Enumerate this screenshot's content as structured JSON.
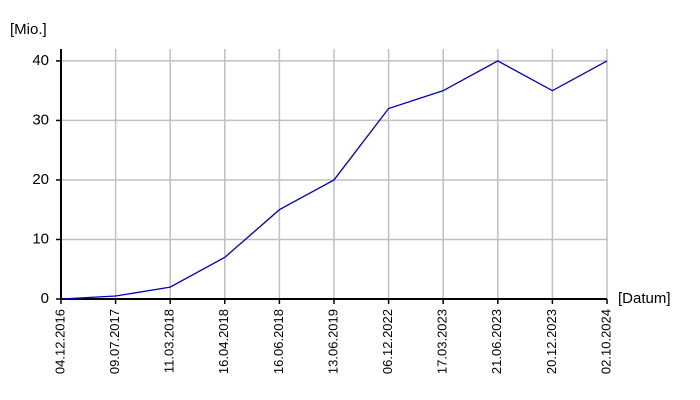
{
  "chart_data": {
    "type": "line",
    "y_label": "[Mio.]",
    "x_label": "[Datum]",
    "categories": [
      "04.12.2016",
      "09.07.2017",
      "11.03.2018",
      "16.04.2018",
      "16.06.2018",
      "13.06.2019",
      "06.12.2022",
      "17.03.2023",
      "21.06.2023",
      "20.12.2023",
      "02.10.2024"
    ],
    "series": [
      {
        "name": "Mio.",
        "color": "#0000c0",
        "values": [
          0,
          0.5,
          2,
          7,
          15,
          20,
          32,
          35,
          40,
          35,
          40
        ]
      }
    ],
    "ylim": [
      0,
      42
    ],
    "yticks": [
      0,
      10,
      20,
      30,
      40
    ],
    "grid": true
  }
}
